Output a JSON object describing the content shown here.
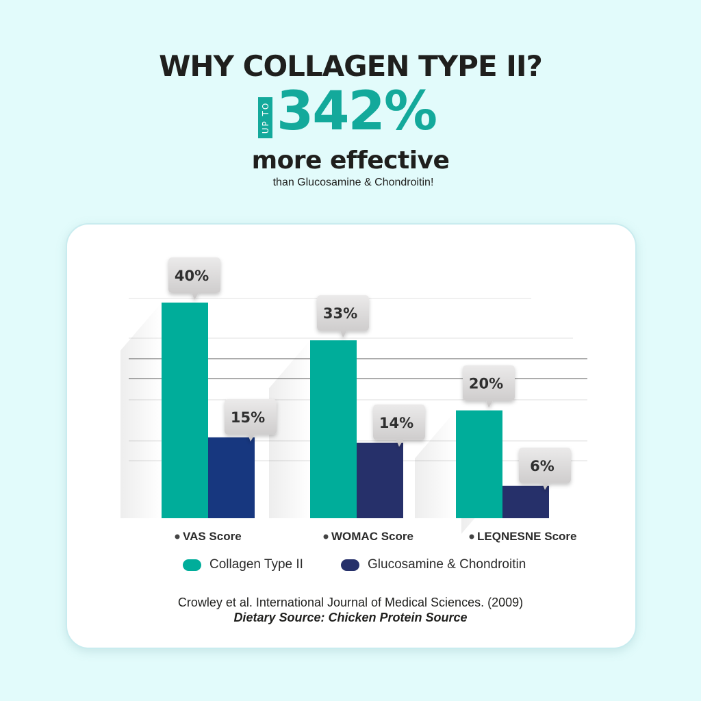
{
  "header": {
    "title": "WHY COLLAGEN TYPE II?",
    "up_to": "UP TO",
    "headline_number": "342%",
    "subheadline": "more effective",
    "comparison_text": "than Glucosamine & Chondroitin!"
  },
  "colors": {
    "background": "#e2fbfb",
    "accent": "#13a99b",
    "collagen": "#00ad9a",
    "glucosamine": "#26306a",
    "glucosamine_first": "#17377f"
  },
  "chart_data": {
    "type": "bar",
    "categories": [
      "VAS Score",
      "WOMAC Score",
      "LEQNESNE Score"
    ],
    "series": [
      {
        "name": "Collagen Type II",
        "values": [
          40,
          33,
          20
        ],
        "labels": [
          "40%",
          "33%",
          "20%"
        ]
      },
      {
        "name": "Glucosamine & Chondroitin",
        "values": [
          15,
          14,
          6
        ],
        "labels": [
          "15%",
          "14%",
          "6%"
        ]
      }
    ],
    "ylim": [
      0,
      40
    ],
    "grid": true,
    "legend_position": "bottom"
  },
  "legend": [
    {
      "label": "Collagen Type II"
    },
    {
      "label": "Glucosamine & Chondroitin"
    }
  ],
  "citation": "Crowley et al. International Journal of Medical Sciences. (2009)",
  "source_note": "Dietary Source: Chicken Protein Source"
}
